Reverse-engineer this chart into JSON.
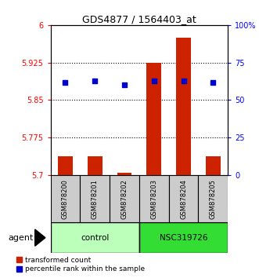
{
  "title": "GDS4877 / 1564403_at",
  "samples": [
    "GSM878200",
    "GSM878201",
    "GSM878202",
    "GSM878203",
    "GSM878204",
    "GSM878205"
  ],
  "bar_values": [
    5.738,
    5.738,
    5.705,
    5.925,
    5.975,
    5.738
  ],
  "bar_bottom": 5.7,
  "dot_percentile": [
    62,
    63,
    60,
    63,
    63,
    62
  ],
  "ylim_left": [
    5.7,
    6.0
  ],
  "ylim_right": [
    0,
    100
  ],
  "yticks_left": [
    5.7,
    5.775,
    5.85,
    5.925,
    6.0
  ],
  "ytick_labels_left": [
    "5.7",
    "5.775",
    "5.85",
    "5.925",
    "6"
  ],
  "yticks_right": [
    0,
    25,
    50,
    75,
    100
  ],
  "ytick_labels_right": [
    "0",
    "25",
    "50",
    "75",
    "100%"
  ],
  "hlines": [
    5.775,
    5.85,
    5.925
  ],
  "bar_color": "#cc2200",
  "dot_color": "#0000cc",
  "control_color": "#bbffbb",
  "nsc_color": "#33dd33",
  "sample_box_color": "#cccccc",
  "figsize": [
    3.31,
    3.54
  ],
  "agent_label": "agent",
  "legend_bar_label": "transformed count",
  "legend_dot_label": "percentile rank within the sample"
}
